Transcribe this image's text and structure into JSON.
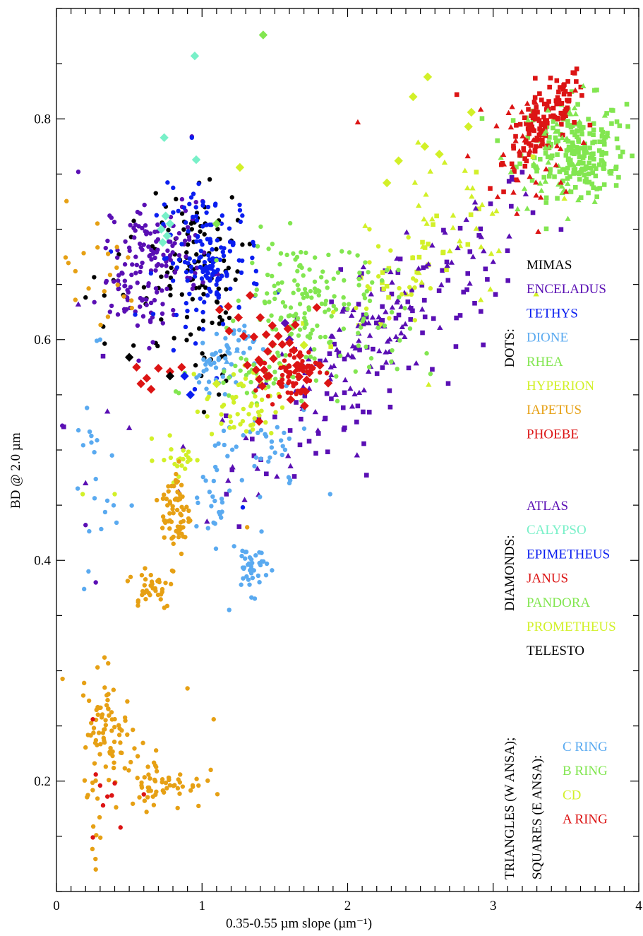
{
  "chart_data": {
    "type": "scatter",
    "title": "",
    "xlabel": "0.35-0.55 µm slope (µm⁻¹)",
    "ylabel": "BD @ 2.0 µm",
    "xlim": [
      0,
      4
    ],
    "ylim": [
      0.1,
      0.9
    ],
    "x_ticks": [
      0,
      1,
      2,
      3,
      4
    ],
    "x_tick_labels": [
      "0",
      "1",
      "2",
      "3",
      "4"
    ],
    "y_ticks": [
      0.2,
      0.4,
      0.6,
      0.8
    ],
    "y_tick_labels": [
      "0.2",
      "0.4",
      "0.6",
      "0.8"
    ],
    "grid": false,
    "legend_placement": "right",
    "legend_groups": [
      {
        "heading": "DOTS:",
        "items": [
          {
            "label": "MIMAS",
            "color": "#000000"
          },
          {
            "label": "ENCELADUS",
            "color": "#5a0fb4"
          },
          {
            "label": "TETHYS",
            "color": "#0a1ef0"
          },
          {
            "label": "DIONE",
            "color": "#5aaaf0"
          },
          {
            "label": "RHEA",
            "color": "#82e650"
          },
          {
            "label": "HYPERION",
            "color": "#d2f028"
          },
          {
            "label": "IAPETUS",
            "color": "#e6a014"
          },
          {
            "label": "PHOEBE",
            "color": "#dc1414"
          }
        ]
      },
      {
        "heading": "DIAMONDS:",
        "items": [
          {
            "label": "ATLAS",
            "color": "#5a0fb4"
          },
          {
            "label": "CALYPSO",
            "color": "#78f0c8"
          },
          {
            "label": "EPIMETHEUS",
            "color": "#0a1ef0"
          },
          {
            "label": "JANUS",
            "color": "#dc1414"
          },
          {
            "label": "PANDORA",
            "color": "#82e650"
          },
          {
            "label": "PROMETHEUS",
            "color": "#d2f028"
          },
          {
            "label": "TELESTO",
            "color": "#000000"
          }
        ]
      },
      {
        "heading": "TRIANGLES (W ANSA);",
        "heading2": "SQUARES (E ANSA):",
        "items": [
          {
            "label": "C RING",
            "color": "#5aaaf0"
          },
          {
            "label": "B RING",
            "color": "#82e650"
          },
          {
            "label": "CD",
            "color": "#d2f028"
          },
          {
            "label": "A RING",
            "color": "#dc1414"
          }
        ]
      }
    ],
    "series": [
      {
        "name": "MIMAS",
        "marker": "dot",
        "color": "#000000",
        "clusters": [
          {
            "cx": 0.95,
            "cy": 0.675,
            "sx": 0.16,
            "sy": 0.03,
            "n": 80
          },
          {
            "cx": 0.55,
            "cy": 0.64,
            "sx": 0.18,
            "sy": 0.03,
            "n": 25
          },
          {
            "cx": 1.05,
            "cy": 0.59,
            "sx": 0.08,
            "sy": 0.025,
            "n": 18
          }
        ],
        "points": [
          [
            0.98,
            0.742
          ],
          [
            0.93,
            0.7
          ],
          [
            0.98,
            0.61
          ]
        ]
      },
      {
        "name": "ENCELADUS",
        "marker": "dot",
        "color": "#5a0fb4",
        "clusters": [
          {
            "cx": 0.72,
            "cy": 0.68,
            "sx": 0.17,
            "sy": 0.022,
            "n": 110
          },
          {
            "cx": 0.46,
            "cy": 0.648,
            "sx": 0.06,
            "sy": 0.012,
            "n": 30
          },
          {
            "cx": 0.62,
            "cy": 0.628,
            "sx": 0.12,
            "sy": 0.015,
            "n": 25
          }
        ],
        "points": [
          [
            0.15,
            0.752
          ],
          [
            0.04,
            0.522
          ],
          [
            0.2,
            0.432
          ],
          [
            0.27,
            0.38
          ],
          [
            0.93,
            0.784
          ]
        ]
      },
      {
        "name": "TETHYS",
        "marker": "dot",
        "color": "#0a1ef0",
        "clusters": [
          {
            "cx": 1.05,
            "cy": 0.675,
            "sx": 0.18,
            "sy": 0.03,
            "n": 120
          },
          {
            "cx": 1.07,
            "cy": 0.66,
            "sx": 0.05,
            "sy": 0.012,
            "n": 35
          }
        ],
        "points": [
          [
            0.93,
            0.783
          ],
          [
            1.28,
            0.448
          ],
          [
            0.95,
            0.555
          ],
          [
            1.1,
            0.565
          ]
        ]
      },
      {
        "name": "DIONE",
        "marker": "dot",
        "color": "#5aaaf0",
        "clusters": [
          {
            "cx": 1.2,
            "cy": 0.595,
            "sx": 0.08,
            "sy": 0.012,
            "n": 30
          },
          {
            "cx": 1.07,
            "cy": 0.57,
            "sx": 0.06,
            "sy": 0.012,
            "n": 25
          },
          {
            "cx": 1.34,
            "cy": 0.395,
            "sx": 0.06,
            "sy": 0.012,
            "n": 40
          },
          {
            "cx": 1.12,
            "cy": 0.455,
            "sx": 0.06,
            "sy": 0.04,
            "n": 35
          },
          {
            "cx": 1.45,
            "cy": 0.5,
            "sx": 0.15,
            "sy": 0.02,
            "n": 30
          },
          {
            "cx": 0.25,
            "cy": 0.47,
            "sx": 0.09,
            "sy": 0.05,
            "n": 20
          }
        ],
        "points": [
          [
            1.88,
            0.46
          ],
          [
            0.19,
            0.374
          ],
          [
            0.22,
            0.39
          ],
          [
            0.3,
            0.6
          ],
          [
            1.6,
            0.47
          ]
        ]
      },
      {
        "name": "RHEA",
        "marker": "dot",
        "color": "#82e650",
        "clusters": [
          {
            "cx": 1.7,
            "cy": 0.64,
            "sx": 0.2,
            "sy": 0.025,
            "n": 130
          },
          {
            "cx": 1.35,
            "cy": 0.57,
            "sx": 0.2,
            "sy": 0.012,
            "n": 50
          },
          {
            "cx": 2.15,
            "cy": 0.6,
            "sx": 0.15,
            "sy": 0.03,
            "n": 30
          }
        ],
        "points": [
          [
            1.96,
            0.68
          ],
          [
            2.27,
            0.663
          ],
          [
            2.3,
            0.58
          ],
          [
            0.82,
            0.553
          ]
        ]
      },
      {
        "name": "HYPERION",
        "marker": "dot",
        "color": "#d2f028",
        "clusters": [
          {
            "cx": 1.28,
            "cy": 0.54,
            "sx": 0.13,
            "sy": 0.018,
            "n": 55
          },
          {
            "cx": 0.85,
            "cy": 0.492,
            "sx": 0.08,
            "sy": 0.01,
            "n": 22
          },
          {
            "cx": 2.3,
            "cy": 0.655,
            "sx": 0.12,
            "sy": 0.02,
            "n": 20
          }
        ],
        "points": [
          [
            0.18,
            0.46
          ],
          [
            0.4,
            0.46
          ],
          [
            2.15,
            0.7
          ]
        ]
      },
      {
        "name": "IAPETUS",
        "marker": "dot",
        "color": "#e6a014",
        "clusters": [
          {
            "cx": 0.82,
            "cy": 0.443,
            "sx": 0.05,
            "sy": 0.022,
            "n": 70
          },
          {
            "cx": 0.65,
            "cy": 0.376,
            "sx": 0.08,
            "sy": 0.01,
            "n": 35
          },
          {
            "cx": 0.38,
            "cy": 0.24,
            "sx": 0.1,
            "sy": 0.025,
            "n": 70
          },
          {
            "cx": 0.75,
            "cy": 0.198,
            "sx": 0.13,
            "sy": 0.012,
            "n": 55
          },
          {
            "cx": 0.3,
            "cy": 0.268,
            "sx": 0.05,
            "sy": 0.025,
            "n": 15
          },
          {
            "cx": 0.27,
            "cy": 0.155,
            "sx": 0.02,
            "sy": 0.02,
            "n": 8
          },
          {
            "cx": 0.28,
            "cy": 0.66,
            "sx": 0.15,
            "sy": 0.03,
            "n": 20
          }
        ],
        "points": [
          [
            0.13,
            0.636
          ],
          [
            0.27,
            0.12
          ],
          [
            1.08,
            0.256
          ],
          [
            0.33,
            0.312
          ],
          [
            0.9,
            0.284
          ],
          [
            1.31,
            0.43
          ]
        ]
      },
      {
        "name": "PHOEBE",
        "marker": "dot",
        "color": "#dc1414",
        "clusters": [
          {
            "cx": 1.62,
            "cy": 0.57,
            "sx": 0.09,
            "sy": 0.012,
            "n": 60
          }
        ],
        "points": [
          [
            0.25,
            0.256
          ],
          [
            0.27,
            0.206
          ],
          [
            0.3,
            0.196
          ],
          [
            0.32,
            0.178
          ],
          [
            0.35,
            0.186
          ],
          [
            0.38,
            0.187
          ],
          [
            0.4,
            0.198
          ],
          [
            0.44,
            0.158
          ],
          [
            0.25,
            0.149
          ],
          [
            0.6,
            0.188
          ]
        ]
      },
      {
        "name": "ATLAS",
        "marker": "diamond",
        "color": "#5a0fb4",
        "clusters": [],
        "points": [
          [
            1.57,
            0.615
          ],
          [
            1.6,
            0.6
          ]
        ]
      },
      {
        "name": "CALYPSO",
        "marker": "diamond",
        "color": "#78f0c8",
        "clusters": [],
        "points": [
          [
            0.95,
            0.857
          ],
          [
            0.74,
            0.783
          ],
          [
            0.96,
            0.763
          ],
          [
            0.75,
            0.712
          ],
          [
            0.78,
            0.705
          ],
          [
            0.72,
            0.7
          ],
          [
            0.76,
            0.694
          ],
          [
            0.73,
            0.688
          ]
        ]
      },
      {
        "name": "EPIMETHEUS",
        "marker": "diamond",
        "color": "#0a1ef0",
        "clusters": [],
        "points": [
          [
            0.88,
            0.567
          ],
          [
            0.92,
            0.55
          ]
        ]
      },
      {
        "name": "JANUS",
        "marker": "diamond",
        "color": "#dc1414",
        "clusters": [
          {
            "cx": 1.55,
            "cy": 0.58,
            "sx": 0.15,
            "sy": 0.018,
            "n": 38
          }
        ],
        "points": [
          [
            0.55,
            0.575
          ],
          [
            0.58,
            0.56
          ],
          [
            0.62,
            0.565
          ],
          [
            0.65,
            0.555
          ],
          [
            0.7,
            0.574
          ],
          [
            0.78,
            0.571
          ],
          [
            0.86,
            0.575
          ],
          [
            1.12,
            0.627
          ],
          [
            1.18,
            0.63
          ],
          [
            1.25,
            0.62
          ],
          [
            1.33,
            0.64
          ],
          [
            1.4,
            0.62
          ]
        ]
      },
      {
        "name": "PANDORA",
        "marker": "diamond",
        "color": "#82e650",
        "clusters": [],
        "points": [
          [
            1.42,
            0.876
          ],
          [
            1.1,
            0.705
          ]
        ]
      },
      {
        "name": "PROMETHEUS",
        "marker": "diamond",
        "color": "#d2f028",
        "clusters": [],
        "points": [
          [
            2.55,
            0.838
          ],
          [
            2.45,
            0.82
          ],
          [
            2.85,
            0.806
          ],
          [
            2.83,
            0.793
          ],
          [
            2.53,
            0.775
          ],
          [
            2.63,
            0.768
          ],
          [
            2.35,
            0.762
          ],
          [
            2.27,
            0.742
          ],
          [
            1.26,
            0.756
          ],
          [
            1.7,
            0.595
          ],
          [
            1.1,
            0.56
          ]
        ]
      },
      {
        "name": "TELESTO",
        "marker": "diamond",
        "color": "#000000",
        "clusters": [],
        "points": [
          [
            0.5,
            0.584
          ],
          [
            0.78,
            0.567
          ]
        ]
      },
      {
        "name": "C RING",
        "marker": "triangle",
        "color": "#5aaaf0",
        "clusters": [],
        "points": [
          [
            1.17,
            0.58
          ],
          [
            1.24,
            0.59
          ]
        ]
      },
      {
        "name": "B RING",
        "marker": "triangle",
        "color": "#82e650",
        "clusters": [
          {
            "cx": 3.5,
            "cy": 0.77,
            "sx": 0.2,
            "sy": 0.025,
            "n": 50
          }
        ],
        "points": []
      },
      {
        "name": "CD",
        "marker": "triangle",
        "color": "#d2f028",
        "clusters": [
          {
            "cx": 2.7,
            "cy": 0.7,
            "sx": 0.25,
            "sy": 0.035,
            "n": 35
          }
        ],
        "points": []
      },
      {
        "name": "A RING",
        "marker": "triangle",
        "color": "#dc1414",
        "clusters": [
          {
            "cx": 3.2,
            "cy": 0.765,
            "sx": 0.18,
            "sy": 0.03,
            "n": 40
          }
        ],
        "points": [
          [
            2.07,
            0.797
          ]
        ]
      },
      {
        "name": "",
        "marker": "triangle",
        "color": "#5a0fb4",
        "clusters": [
          {
            "cx": 2.15,
            "cy": 0.605,
            "sx": 0.45,
            "sy": 0.035,
            "n": 120,
            "slope": 0.115
          }
        ],
        "points": [
          [
            0.35,
            0.535
          ],
          [
            0.5,
            0.52
          ],
          [
            0.87,
            0.503
          ],
          [
            0.2,
            0.47
          ],
          [
            1.14,
            0.527
          ],
          [
            0.15,
            0.632
          ]
        ]
      },
      {
        "name": "",
        "marker": "square",
        "color": "#5a0fb4",
        "clusters": [
          {
            "cx": 2.3,
            "cy": 0.6,
            "sx": 0.55,
            "sy": 0.04,
            "n": 110,
            "slope": 0.105
          }
        ],
        "points": [
          [
            1.98,
            0.52
          ],
          [
            1.8,
            0.515
          ],
          [
            1.5,
            0.53
          ],
          [
            0.05,
            0.521
          ],
          [
            0.32,
            0.585
          ]
        ]
      },
      {
        "name": "",
        "marker": "square",
        "color": "#82e650",
        "clusters": [
          {
            "cx": 3.55,
            "cy": 0.775,
            "sx": 0.18,
            "sy": 0.022,
            "n": 160
          },
          {
            "cx": 3.65,
            "cy": 0.755,
            "sx": 0.12,
            "sy": 0.01,
            "n": 40
          }
        ],
        "points": [
          [
            3.78,
            0.805
          ],
          [
            3.8,
            0.752
          ]
        ]
      },
      {
        "name": "",
        "marker": "square",
        "color": "#dc1414",
        "clusters": [
          {
            "cx": 3.35,
            "cy": 0.795,
            "sx": 0.14,
            "sy": 0.015,
            "n": 130,
            "slope": 0.12
          }
        ],
        "points": [
          [
            2.75,
            0.822
          ]
        ]
      },
      {
        "name": "",
        "marker": "square",
        "color": "#d2f028",
        "clusters": [
          {
            "cx": 2.55,
            "cy": 0.68,
            "sx": 0.3,
            "sy": 0.02,
            "n": 30,
            "slope": 0.1
          }
        ],
        "points": []
      }
    ]
  }
}
